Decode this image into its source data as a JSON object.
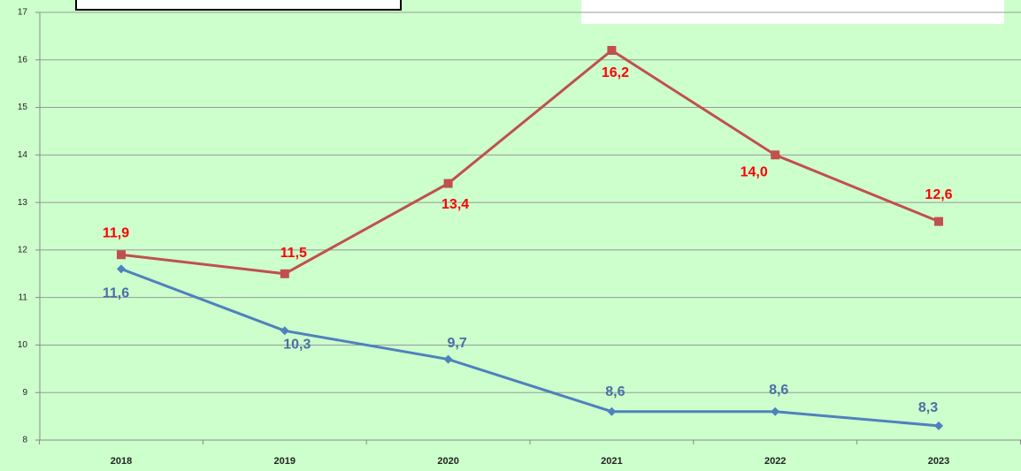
{
  "chart_data": {
    "type": "line",
    "categories": [
      "2018",
      "2019",
      "2020",
      "2021",
      "2022",
      "2023"
    ],
    "series": [
      {
        "color": "#c0504d",
        "label_color": "#ff0000",
        "marker": "square",
        "values": [
          11.9,
          11.5,
          13.4,
          16.2,
          14.0,
          12.6
        ],
        "value_labels": [
          "11,9",
          "11,5",
          "13,4",
          "16,2",
          "14,0",
          "12,6"
        ]
      },
      {
        "color": "#4f81bd",
        "label_color": "#4a6fa5",
        "marker": "diamond",
        "values": [
          11.6,
          10.3,
          9.7,
          8.6,
          8.6,
          8.3
        ],
        "value_labels": [
          "11,6",
          "10,3",
          "9,7",
          "8,6",
          "8,6",
          "8,3"
        ]
      }
    ],
    "ylim": [
      8,
      17
    ],
    "yticks": [
      8,
      9,
      10,
      11,
      12,
      13,
      14,
      15,
      16,
      17
    ],
    "grid": true
  }
}
